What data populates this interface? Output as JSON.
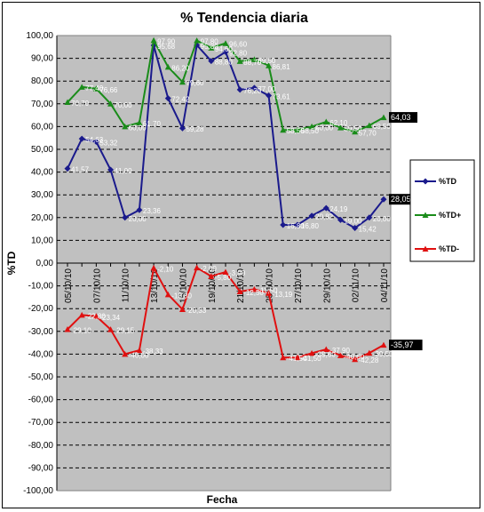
{
  "chart_data": {
    "type": "line",
    "title": "% Tendencia diaria",
    "xlabel": "Fecha",
    "ylabel": "%TD",
    "ylim": [
      -100,
      100
    ],
    "ytick_step": 10,
    "y_ticks": [
      "100,00",
      "90,00",
      "80,00",
      "70,00",
      "60,00",
      "50,00",
      "40,00",
      "30,00",
      "20,00",
      "10,00",
      "0,00",
      "-10,00",
      "-20,00",
      "-30,00",
      "-40,00",
      "-50,00",
      "-60,00",
      "-70,00",
      "-80,00",
      "-90,00",
      "-100,00"
    ],
    "x_tick_labels": [
      "05/10/10",
      "07/10/10",
      "11/10/10",
      "13/10/10",
      "15/10/10",
      "19/10/10",
      "21/10/10",
      "25/10/10",
      "27/10/10",
      "29/10/10",
      "02/11/10",
      "04/11/10"
    ],
    "grid": true,
    "legend_position": "right",
    "series": [
      {
        "name": "%TD",
        "color": "#1a1a8c",
        "marker": "diamond",
        "values": [
          41.57,
          54.63,
          53.32,
          41.0,
          20.0,
          23.36,
          95.68,
          72.42,
          59.28,
          95.8,
          88.8,
          92.8,
          76.2,
          77.0,
          73.61,
          16.8,
          16.8,
          20.82,
          24.19,
          19.0,
          15.42,
          20.0,
          28.05
        ],
        "labels": [
          "41,57",
          "54,63",
          "53,32",
          "41,00",
          "20,00",
          "23,36",
          "95,68",
          "72,42",
          "59,28",
          "95,80",
          "88,80",
          "92,80",
          "76,20",
          "77,00",
          "73,61",
          "16,80",
          "16,80",
          "20,82",
          "24,19",
          "19,00",
          "15,42",
          "20,00",
          "28,05"
        ],
        "end_label": "28,05"
      },
      {
        "name": "%TD+",
        "color": "#1a8c1a",
        "marker": "triangle",
        "values": [
          70.7,
          77.4,
          76.66,
          70.0,
          60.0,
          61.7,
          97.9,
          86.2,
          79.6,
          97.8,
          94.6,
          96.6,
          88.7,
          89.5,
          86.81,
          58.5,
          58.5,
          60.0,
          62.1,
          59.5,
          57.7,
          60.5,
          64.03
        ],
        "labels": [
          "70,70",
          "77,40",
          "76,66",
          "70,00",
          "60,00",
          "61,70",
          "97,90",
          "86,20",
          "79,60",
          "97,80",
          "94,60",
          "96,60",
          "88,70",
          "89,50",
          "86,81",
          "58,50",
          "58,50",
          "60,00",
          "62,10",
          "59,50",
          "57,70",
          "60,50",
          "64,03"
        ],
        "end_label": "64,03"
      },
      {
        "name": "%TD-",
        "color": "#e01010",
        "marker": "triangle",
        "values": [
          -29.1,
          -22.8,
          -23.34,
          -29.15,
          -40.0,
          -38.33,
          -2.1,
          -13.8,
          -20.33,
          -2.0,
          -5.8,
          -3.9,
          -12.5,
          -11.5,
          -13.19,
          -41.5,
          -41.5,
          -39.6,
          -37.9,
          -40.6,
          -42.28,
          -39.5,
          -35.97
        ],
        "labels": [
          "-29,10",
          "-22,80",
          "-23,34",
          "-29,15",
          "-40,00",
          "-38,33",
          "-2,10",
          "-13,80",
          "-20,33",
          "-2,00",
          "-5,80",
          "-3,90",
          "-12,50",
          "-11,50",
          "-13,19",
          "-41,50",
          "-41,50",
          "-39,60",
          "-37,90",
          "-40,60",
          "-42,28",
          "-39,50",
          "-35,97"
        ],
        "end_label": "-35,97"
      }
    ]
  }
}
